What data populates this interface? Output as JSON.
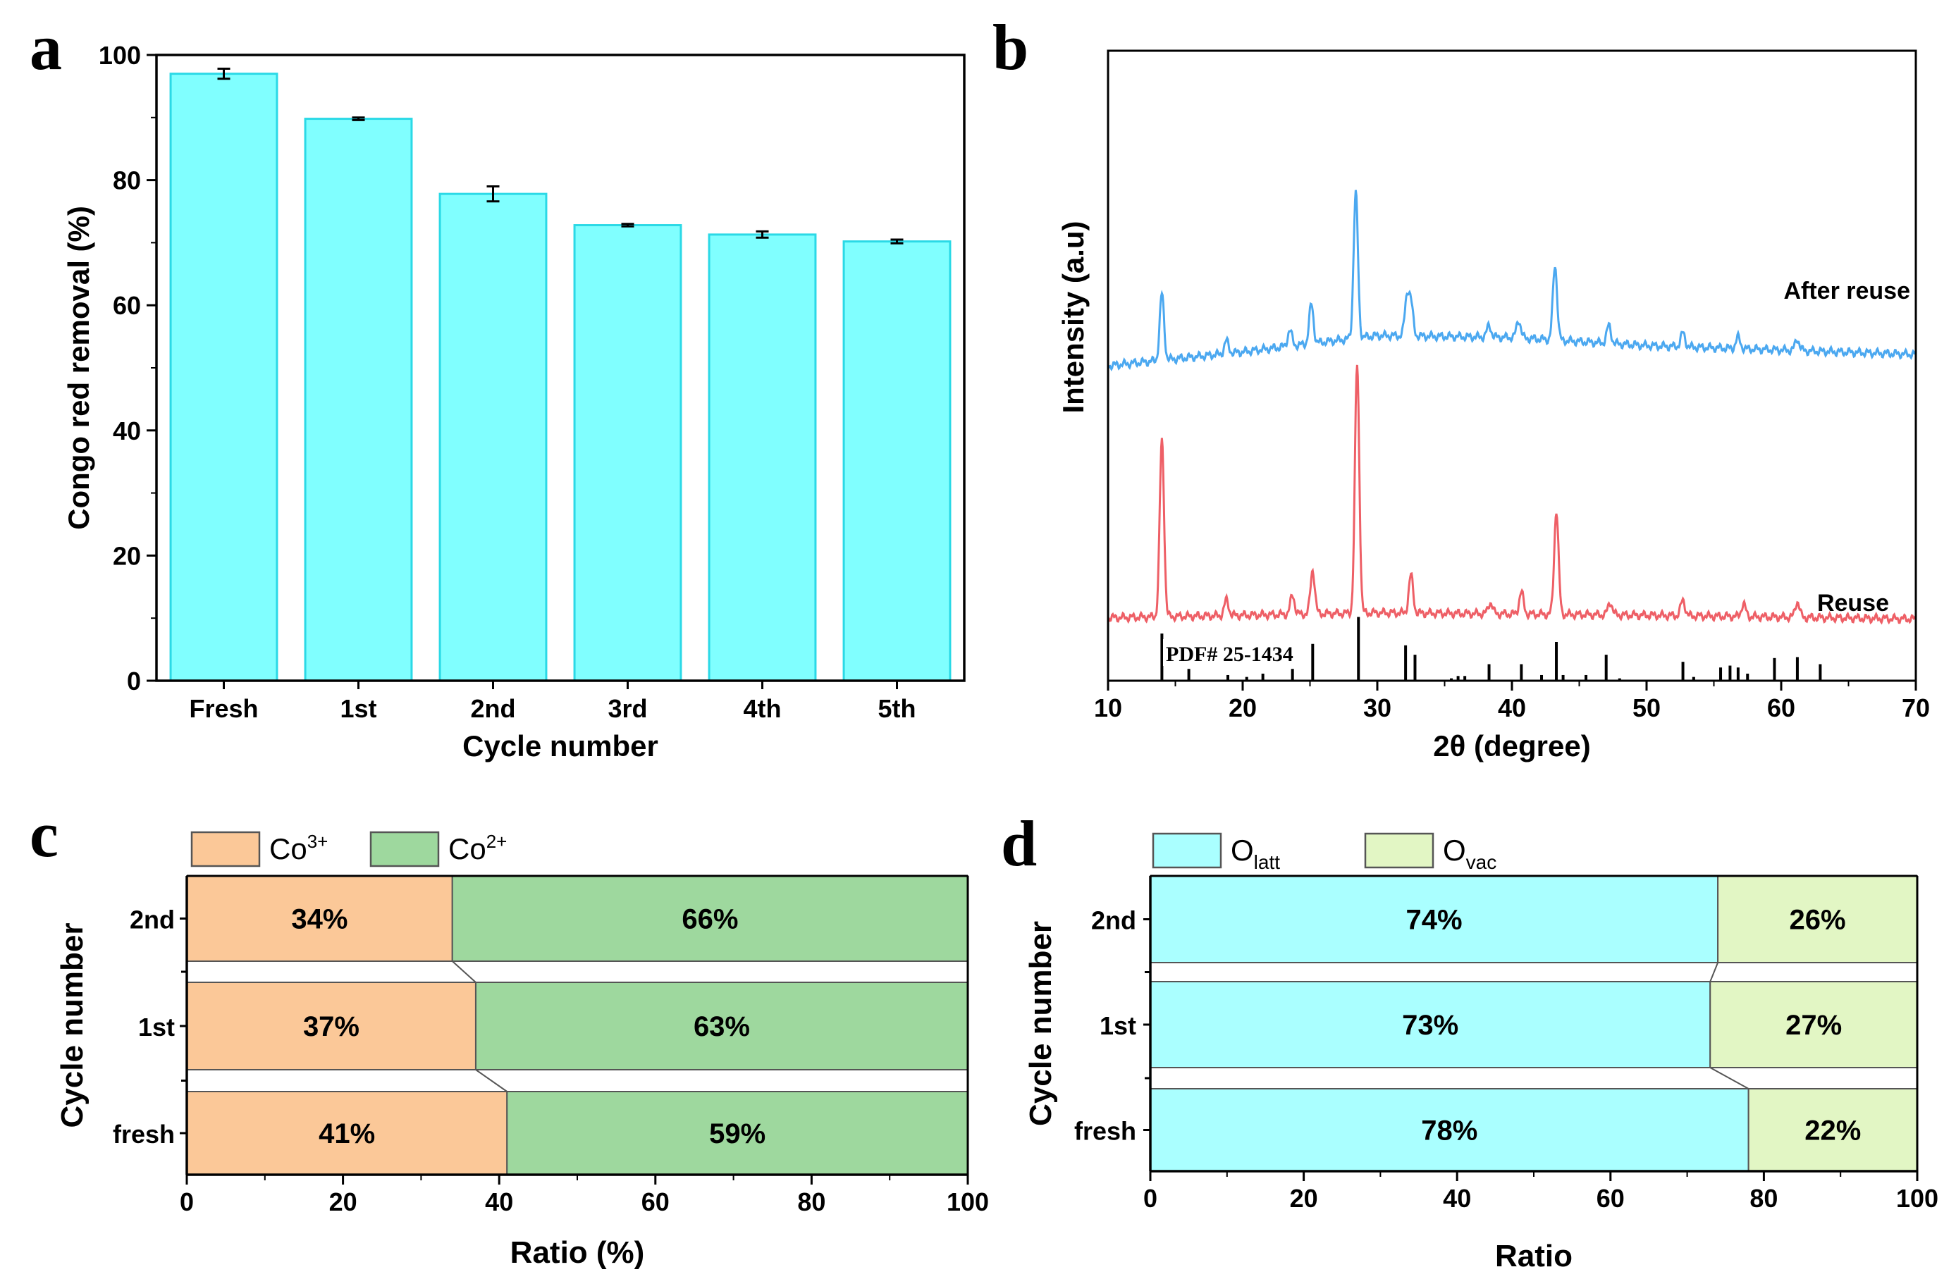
{
  "colors": {
    "cyan_bar": "#80FFFF",
    "cyan_edge": "#2BD9E6",
    "co3_fill": "#FBC898",
    "co2_fill": "#9ED89E",
    "olatt_fill": "#AAFFFF",
    "ovac_fill": "#E2F6C4",
    "after_reuse_line": "#4BA8F0",
    "reuse_line": "#EE5F66",
    "connector_bg": "#FFFFFF"
  },
  "panels": {
    "a": {
      "letter": "a"
    },
    "b": {
      "letter": "b"
    },
    "c": {
      "letter": "c"
    },
    "d": {
      "letter": "d"
    }
  },
  "chart_data": [
    {
      "panel": "a",
      "type": "bar",
      "title": "",
      "xlabel": "Cycle number",
      "ylabel": "Congo red removal (%)",
      "ylim": [
        0,
        100
      ],
      "yticks": [
        0,
        20,
        40,
        60,
        80,
        100
      ],
      "categories": [
        "Fresh",
        "1st",
        "2nd",
        "3rd",
        "4th",
        "5th"
      ],
      "values": [
        97.0,
        89.8,
        77.8,
        72.8,
        71.3,
        70.2
      ],
      "errors": [
        0.8,
        0.2,
        1.2,
        0.2,
        0.5,
        0.3
      ]
    },
    {
      "panel": "b",
      "type": "line",
      "title": "",
      "xlabel": "2θ (degree)",
      "ylabel": "Intensity (a.u)",
      "xlim": [
        10,
        70
      ],
      "xticks": [
        10,
        20,
        30,
        40,
        50,
        60,
        70
      ],
      "y_axis_ticks": false,
      "reference_label": "PDF# 25-1434",
      "series": [
        {
          "name": "After reuse",
          "baseline": [
            [
              10,
              0.5
            ],
            [
              20,
              0.522
            ],
            [
              30,
              0.548
            ],
            [
              40,
              0.545
            ],
            [
              50,
              0.532
            ],
            [
              60,
              0.525
            ],
            [
              70,
              0.518
            ]
          ],
          "peaks": [
            [
              14.0,
              0.105
            ],
            [
              18.8,
              0.02
            ],
            [
              23.5,
              0.025
            ],
            [
              25.1,
              0.062
            ],
            [
              28.4,
              0.23
            ],
            [
              32.2,
              0.06
            ],
            [
              32.5,
              0.05
            ],
            [
              38.3,
              0.018
            ],
            [
              40.5,
              0.028
            ],
            [
              43.2,
              0.118
            ],
            [
              47.2,
              0.028
            ],
            [
              52.7,
              0.022
            ],
            [
              56.8,
              0.018
            ],
            [
              61.2,
              0.018
            ]
          ]
        },
        {
          "name": "Reuse",
          "baseline": [
            [
              10,
              0.1
            ],
            [
              30,
              0.108
            ],
            [
              50,
              0.104
            ],
            [
              70,
              0.098
            ]
          ],
          "peaks": [
            [
              14.0,
              0.28
            ],
            [
              18.8,
              0.025
            ],
            [
              23.7,
              0.03
            ],
            [
              25.2,
              0.07
            ],
            [
              28.5,
              0.395
            ],
            [
              32.5,
              0.06
            ],
            [
              38.4,
              0.018
            ],
            [
              40.7,
              0.035
            ],
            [
              43.3,
              0.165
            ],
            [
              47.3,
              0.02
            ],
            [
              52.7,
              0.025
            ],
            [
              57.2,
              0.02
            ],
            [
              61.2,
              0.025
            ]
          ]
        }
      ],
      "reference_peaks": [
        [
          14.0,
          1.0
        ],
        [
          16.0,
          0.25
        ],
        [
          18.9,
          0.12
        ],
        [
          20.3,
          0.08
        ],
        [
          21.5,
          0.15
        ],
        [
          23.7,
          0.25
        ],
        [
          25.2,
          0.78
        ],
        [
          28.6,
          1.35
        ],
        [
          32.1,
          0.75
        ],
        [
          32.8,
          0.55
        ],
        [
          35.5,
          0.05
        ],
        [
          36.0,
          0.1
        ],
        [
          36.5,
          0.1
        ],
        [
          38.3,
          0.35
        ],
        [
          40.7,
          0.35
        ],
        [
          42.2,
          0.12
        ],
        [
          43.3,
          0.82
        ],
        [
          43.8,
          0.12
        ],
        [
          45.5,
          0.12
        ],
        [
          47.0,
          0.55
        ],
        [
          48.0,
          0.05
        ],
        [
          52.7,
          0.4
        ],
        [
          53.5,
          0.08
        ],
        [
          55.5,
          0.28
        ],
        [
          56.2,
          0.32
        ],
        [
          56.8,
          0.28
        ],
        [
          57.5,
          0.15
        ],
        [
          59.5,
          0.48
        ],
        [
          61.2,
          0.5
        ],
        [
          62.9,
          0.35
        ]
      ]
    },
    {
      "panel": "c",
      "type": "bar",
      "orientation": "horizontal-stacked",
      "title": "",
      "xlabel": "Ratio (%)",
      "ylabel": "Cycle number",
      "xlim": [
        0,
        100
      ],
      "xticks": [
        0,
        20,
        40,
        60,
        80,
        100
      ],
      "categories": [
        "2nd",
        "1st",
        "fresh"
      ],
      "series": [
        {
          "name": "Co3+",
          "legend_base": "Co",
          "legend_sup": "3+",
          "values": [
            34,
            37,
            41
          ],
          "labels": [
            "34%",
            "37%",
            "41%"
          ]
        },
        {
          "name": "Co2+",
          "legend_base": "Co",
          "legend_sup": "2+",
          "values": [
            66,
            63,
            59
          ],
          "labels": [
            "66%",
            "63%",
            "59%"
          ]
        }
      ]
    },
    {
      "panel": "d",
      "type": "bar",
      "orientation": "horizontal-stacked",
      "title": "",
      "xlabel": "Ratio",
      "ylabel": "Cycle number",
      "xlim": [
        0,
        100
      ],
      "xticks": [
        0,
        20,
        40,
        60,
        80,
        100
      ],
      "categories": [
        "2nd",
        "1st",
        "fresh"
      ],
      "series": [
        {
          "name": "Olatt",
          "legend_base": "O",
          "legend_sub": "latt",
          "values": [
            74,
            73,
            78
          ],
          "labels": [
            "74%",
            "73%",
            "78%"
          ]
        },
        {
          "name": "Ovac",
          "legend_base": "O",
          "legend_sub": "vac",
          "values": [
            26,
            27,
            22
          ],
          "labels": [
            "26%",
            "27%",
            "22%"
          ]
        }
      ]
    }
  ]
}
